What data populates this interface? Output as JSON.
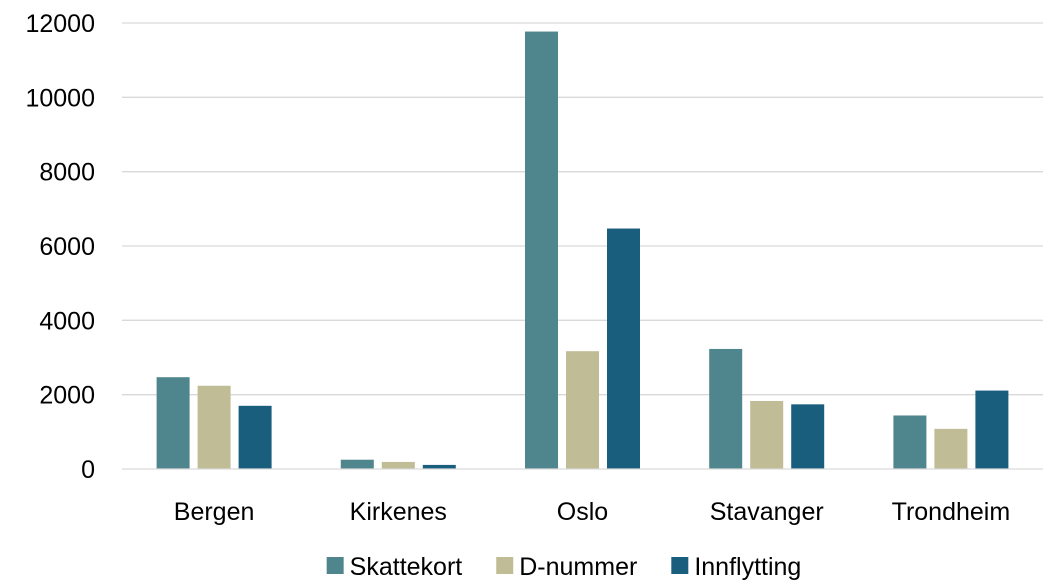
{
  "chart_data": {
    "type": "bar",
    "title": "",
    "xlabel": "",
    "ylabel": "",
    "categories": [
      "Bergen",
      "Kirkenes",
      "Oslo",
      "Stavanger",
      "Trondheim"
    ],
    "ylim": [
      0,
      12000
    ],
    "yticks": [
      0,
      2000,
      4000,
      6000,
      8000,
      10000,
      12000
    ],
    "grid": true,
    "legend_position": "bottom",
    "series": [
      {
        "name": "Skattekort",
        "color": "#4f868e",
        "values": [
          2470,
          250,
          11770,
          3230,
          1440
        ]
      },
      {
        "name": "D-nummer",
        "color": "#c0bc96",
        "values": [
          2240,
          190,
          3170,
          1830,
          1080
        ]
      },
      {
        "name": "Innflytting",
        "color": "#1a5e7e",
        "values": [
          1700,
          110,
          6470,
          1740,
          2110
        ]
      }
    ]
  }
}
